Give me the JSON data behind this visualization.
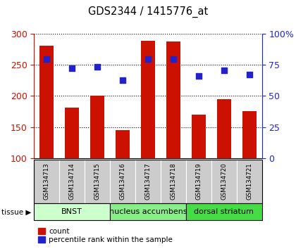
{
  "title": "GDS2344 / 1415776_at",
  "samples": [
    "GSM134713",
    "GSM134714",
    "GSM134715",
    "GSM134716",
    "GSM134717",
    "GSM134718",
    "GSM134719",
    "GSM134720",
    "GSM134721"
  ],
  "counts": [
    281,
    181,
    200,
    145,
    289,
    287,
    170,
    195,
    176
  ],
  "percentile_raw": [
    259,
    244,
    247,
    225,
    259,
    259,
    232,
    241,
    234
  ],
  "ylim_left": [
    100,
    300
  ],
  "ylim_right": [
    0,
    100
  ],
  "yticks_left": [
    100,
    150,
    200,
    250,
    300
  ],
  "yticks_right": [
    0,
    25,
    50,
    75,
    100
  ],
  "bar_color": "#cc1100",
  "dot_color": "#2222cc",
  "groups": [
    {
      "label": "BNST",
      "start": 0,
      "end": 3,
      "color": "#ccffcc"
    },
    {
      "label": "nucleus accumbens",
      "start": 3,
      "end": 6,
      "color": "#88ee88"
    },
    {
      "label": "dorsal striatum",
      "start": 6,
      "end": 9,
      "color": "#44dd44"
    }
  ],
  "legend_count_label": "count",
  "legend_pct_label": "percentile rank within the sample",
  "tissue_label": "tissue",
  "background_labels": "#cccccc",
  "figsize": [
    4.2,
    3.54
  ],
  "dpi": 100
}
